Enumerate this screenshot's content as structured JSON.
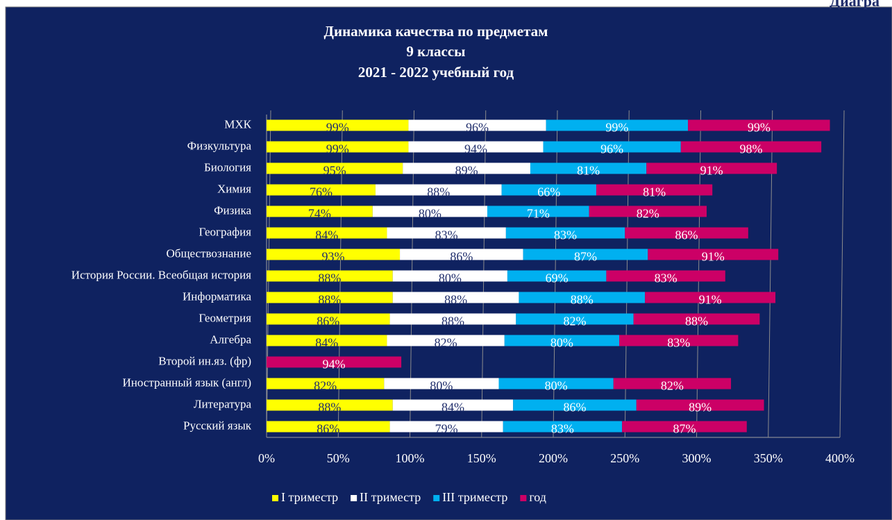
{
  "header": {
    "text": "Диагра"
  },
  "chart_data": {
    "type": "stacked-bar-horizontal",
    "title": [
      "Динамика качества по предметам",
      "9 классы",
      "2021 - 2022 учебный год"
    ],
    "categories": [
      "МХК",
      "Физкультура",
      "Биология",
      "Химия",
      "Физика",
      "География",
      "Обществознание",
      "История России. Всеобщая история",
      "Информатика",
      "Геометрия",
      "Алгебра",
      "Второй ин.яз. (фр)",
      "Иностранный  язык (англ)",
      "Литература",
      "Русский язык"
    ],
    "series": [
      {
        "name": "I триместр",
        "color": "#ffff00",
        "label_color": "#1f2d6b",
        "values": [
          99,
          99,
          95,
          76,
          74,
          84,
          93,
          88,
          88,
          86,
          84,
          null,
          82,
          88,
          86
        ],
        "value_labels": [
          "99%",
          "99%",
          "95%",
          "76%",
          "74%",
          "84%",
          "93%",
          "88%",
          "88%",
          "86%",
          "84%",
          null,
          "82%",
          "88%",
          "86%"
        ]
      },
      {
        "name": "II триместр",
        "color": "#ffffff",
        "label_color": "#1f2d6b",
        "values": [
          96,
          94,
          89,
          88,
          80,
          83,
          86,
          80,
          88,
          88,
          82,
          null,
          80,
          84,
          79
        ],
        "value_labels": [
          "96%",
          "94%",
          "89%",
          "88%",
          "80%",
          "83%",
          "86%",
          "80%",
          "88%",
          "88%",
          "82%",
          null,
          "80%",
          "84%",
          "79%"
        ]
      },
      {
        "name": "III триместр",
        "color": "#00b0f0",
        "label_color": "#ffffff",
        "values": [
          99,
          96,
          81,
          66,
          71,
          83,
          87,
          69,
          88,
          82,
          80,
          null,
          80,
          86,
          83
        ],
        "value_labels": [
          "99%",
          "96%",
          "81%",
          "66%",
          "71%",
          "83%",
          "87%",
          "69%",
          "88%",
          "82%",
          "80%",
          null,
          "80%",
          "86%",
          "83%"
        ]
      },
      {
        "name": "год",
        "color": "#cc0066",
        "label_color": "#ffffff",
        "values": [
          99,
          98,
          91,
          81,
          82,
          86,
          91,
          83,
          91,
          88,
          83,
          94,
          82,
          89,
          87
        ],
        "value_labels": [
          "99%",
          "98%",
          "91%",
          "81%",
          "82%",
          "86%",
          "91%",
          "83%",
          "91%",
          "88%",
          "83%",
          "94%",
          "82%",
          "89%",
          "87%"
        ]
      }
    ],
    "xlim": [
      0,
      400
    ],
    "xticks": [
      {
        "value": 0,
        "label": "0%"
      },
      {
        "value": 50,
        "label": "50%"
      },
      {
        "value": 100,
        "label": "100%"
      },
      {
        "value": 150,
        "label": "150%"
      },
      {
        "value": 200,
        "label": "200%"
      },
      {
        "value": 250,
        "label": "250%"
      },
      {
        "value": 300,
        "label": "300%"
      },
      {
        "value": 350,
        "label": "350%"
      },
      {
        "value": 400,
        "label": "400%"
      }
    ],
    "grid": true,
    "legend": "bottom"
  }
}
